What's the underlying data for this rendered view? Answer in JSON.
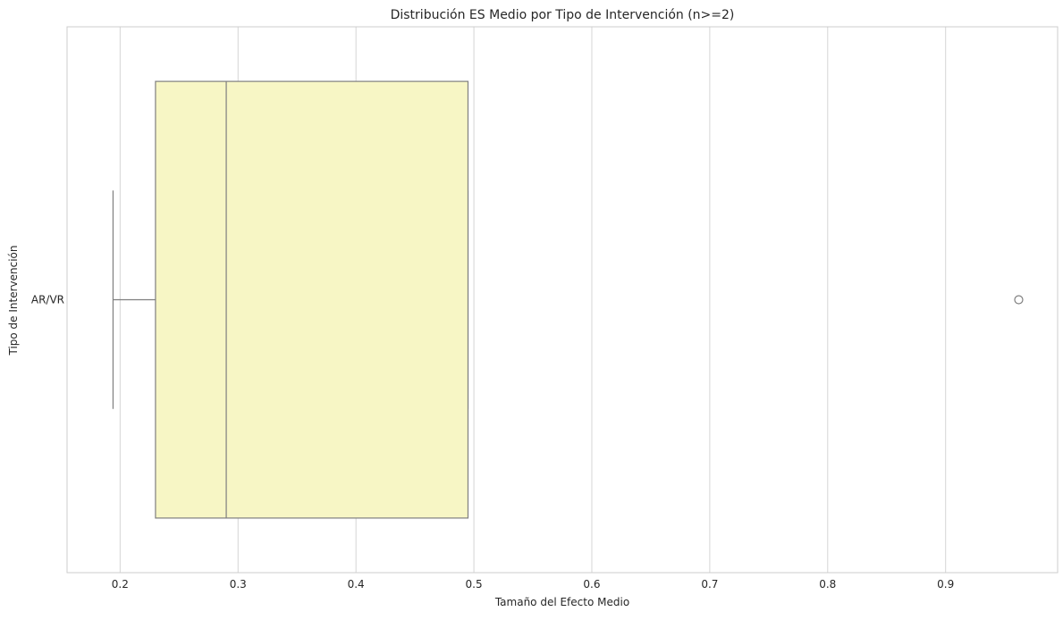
{
  "chart_data": {
    "type": "boxplot",
    "orientation": "horizontal",
    "title": "Distribución ES Medio por Tipo de Intervención (n>=2)",
    "xlabel": "Tamaño del Efecto Medio",
    "ylabel": "Tipo de Intervención",
    "xlim": [
      0.155,
      0.995
    ],
    "xticks": [
      0.2,
      0.3,
      0.4,
      0.5,
      0.6,
      0.7,
      0.8,
      0.9
    ],
    "xtick_labels": [
      "0.2",
      "0.3",
      "0.4",
      "0.5",
      "0.6",
      "0.7",
      "0.8",
      "0.9"
    ],
    "categories": [
      "AR/VR"
    ],
    "boxes": [
      {
        "category": "AR/VR",
        "whisker_low": 0.194,
        "q1": 0.23,
        "median": 0.29,
        "q3": 0.495,
        "whisker_high": 0.495,
        "outliers": [
          0.962
        ]
      }
    ],
    "grid": "vertical",
    "colors": {
      "box_fill": "#f7f6c5",
      "box_edge": "#7f7f7f",
      "grid": "#d5d5d5",
      "spine": "#cccccc"
    }
  }
}
